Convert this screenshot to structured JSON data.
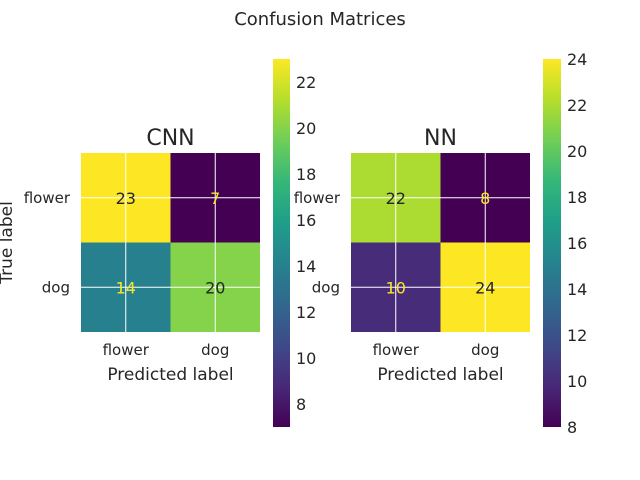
{
  "figure": {
    "title": "Confusion Matrices"
  },
  "chart_data": [
    {
      "type": "heatmap",
      "title": "CNN",
      "xlabel": "Predicted label",
      "ylabel": "True label",
      "x_categories": [
        "flower",
        "dog"
      ],
      "y_categories": [
        "flower",
        "dog"
      ],
      "values": [
        [
          23,
          7
        ],
        [
          14,
          20
        ]
      ],
      "colormap": "viridis",
      "colorbar": {
        "range": [
          7,
          23
        ],
        "ticks": [
          8,
          10,
          12,
          14,
          16,
          18,
          20,
          22
        ]
      }
    },
    {
      "type": "heatmap",
      "title": "NN",
      "xlabel": "Predicted label",
      "ylabel": "",
      "x_categories": [
        "flower",
        "dog"
      ],
      "y_categories": [
        "flower",
        "dog"
      ],
      "values": [
        [
          22,
          8
        ],
        [
          10,
          24
        ]
      ],
      "colormap": "viridis",
      "colorbar": {
        "range": [
          8,
          24
        ],
        "ticks": [
          8,
          10,
          12,
          14,
          16,
          18,
          20,
          22,
          24
        ]
      }
    }
  ],
  "colors": {
    "viridis_stops": [
      "#440154",
      "#482878",
      "#3e4a89",
      "#31688e",
      "#26828e",
      "#1f9e89",
      "#35b779",
      "#6ece58",
      "#b5de2b",
      "#fde725"
    ],
    "text_dark": "#262626",
    "text_light_cell": "#fde725",
    "grid": "#ffffff"
  }
}
